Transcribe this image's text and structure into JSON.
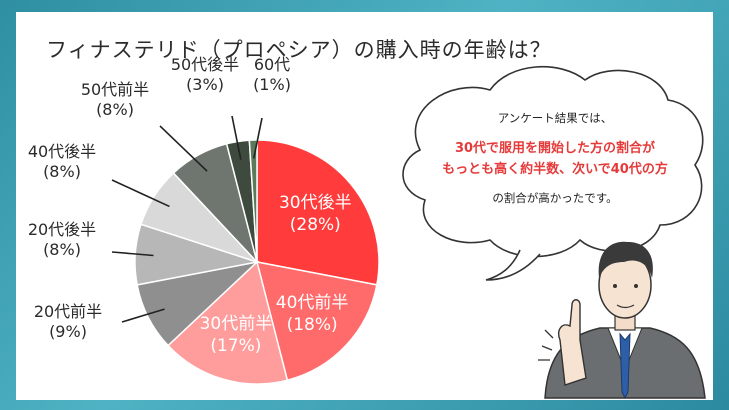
{
  "title": "フィナステリド（プロペシア）の購入時の年齢は？",
  "chart_data": {
    "type": "pie",
    "slices": [
      {
        "label": "30代後半",
        "value": 28,
        "pct": "(28%)",
        "color": "#ff3b3b",
        "inside": true
      },
      {
        "label": "40代前半",
        "value": 18,
        "pct": "(18%)",
        "color": "#ff6b6b",
        "inside": true
      },
      {
        "label": "30代前半",
        "value": 17,
        "pct": "(17%)",
        "color": "#ff9d9d",
        "inside": true
      },
      {
        "label": "20代前半",
        "value": 9,
        "pct": "(9%)",
        "color": "#8f8f8f",
        "inside": false
      },
      {
        "label": "20代後半",
        "value": 8,
        "pct": "(8%)",
        "color": "#b7b7b7",
        "inside": false
      },
      {
        "label": "40代後半",
        "value": 8,
        "pct": "(8%)",
        "color": "#d9d9d9",
        "inside": false
      },
      {
        "label": "50代前半",
        "value": 8,
        "pct": "(8%)",
        "color": "#6f766f",
        "inside": false
      },
      {
        "label": "50代後半",
        "value": 3,
        "pct": "(3%)",
        "color": "#3d4a3d",
        "inside": false
      },
      {
        "label": "60代",
        "value": 1,
        "pct": "(1%)",
        "color": "#5a7a5a",
        "inside": false
      }
    ]
  },
  "bubble": {
    "lead": "アンケート結果では、",
    "highlight_1": "30代で服用を開始した方の割合が",
    "highlight_2": "もっとも高く約半数、次いで40代の方",
    "tail": "の割合が高かったです。"
  }
}
